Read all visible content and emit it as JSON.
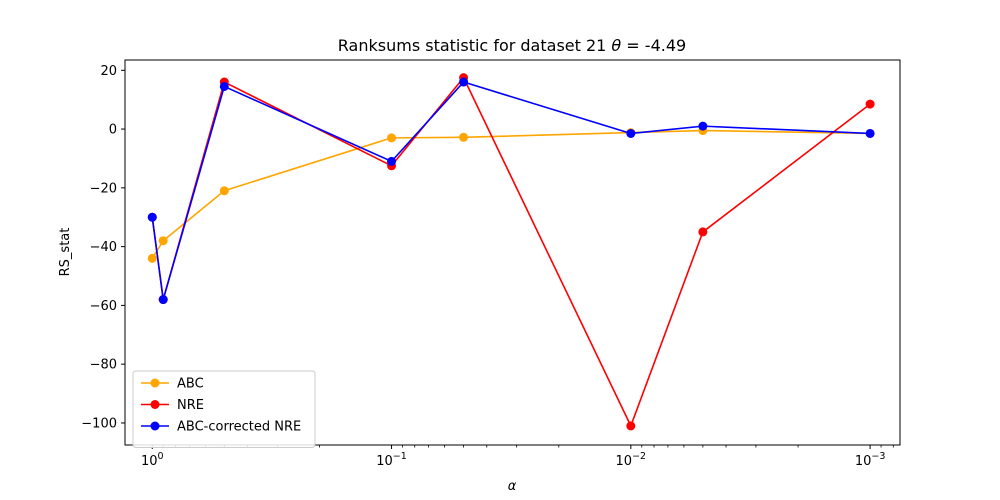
{
  "chart_data": {
    "type": "line",
    "title": "Ranksums statistic for dataset 21 θ =  -4.49",
    "title_prefix": "Ranksums statistic for dataset 21 ",
    "title_theta": "θ",
    "title_suffix": " =  -4.49",
    "xlabel": "α",
    "ylabel": "RS_stat",
    "x_scale": "log",
    "x_reversed": true,
    "xlim": [
      1.3,
      0.00075
    ],
    "ylim": [
      -107.5,
      23.5
    ],
    "x_major_ticks": [
      {
        "value": 1,
        "base": "10",
        "exp": "0"
      },
      {
        "value": 0.1,
        "base": "10",
        "exp": "−1"
      },
      {
        "value": 0.01,
        "base": "10",
        "exp": "−2"
      },
      {
        "value": 0.001,
        "base": "10",
        "exp": "−3"
      }
    ],
    "y_ticks": [
      20,
      0,
      -20,
      -40,
      -60,
      -80,
      -100
    ],
    "y_tick_labels": [
      "20",
      "0",
      "−20",
      "−40",
      "−60",
      "−80",
      "−100"
    ],
    "x": [
      1,
      0.9,
      0.5,
      0.1,
      0.05,
      0.01,
      0.005,
      0.001
    ],
    "series": [
      {
        "name": "ABC",
        "color": "#ffa500",
        "values": [
          -44,
          -38,
          -21,
          -3,
          -2.8,
          -1.2,
          -0.5,
          -1.5
        ]
      },
      {
        "name": "NRE",
        "color": "#ff0000",
        "values": [
          -30,
          -58,
          16,
          -12.5,
          17.5,
          -101,
          -35,
          8.5
        ]
      },
      {
        "name": "ABC-corrected NRE",
        "color": "#0000ff",
        "values": [
          -30,
          -58,
          14.5,
          -11,
          16,
          -1.5,
          1,
          -1.5
        ]
      }
    ],
    "grid": false,
    "legend_position": "lower left"
  }
}
